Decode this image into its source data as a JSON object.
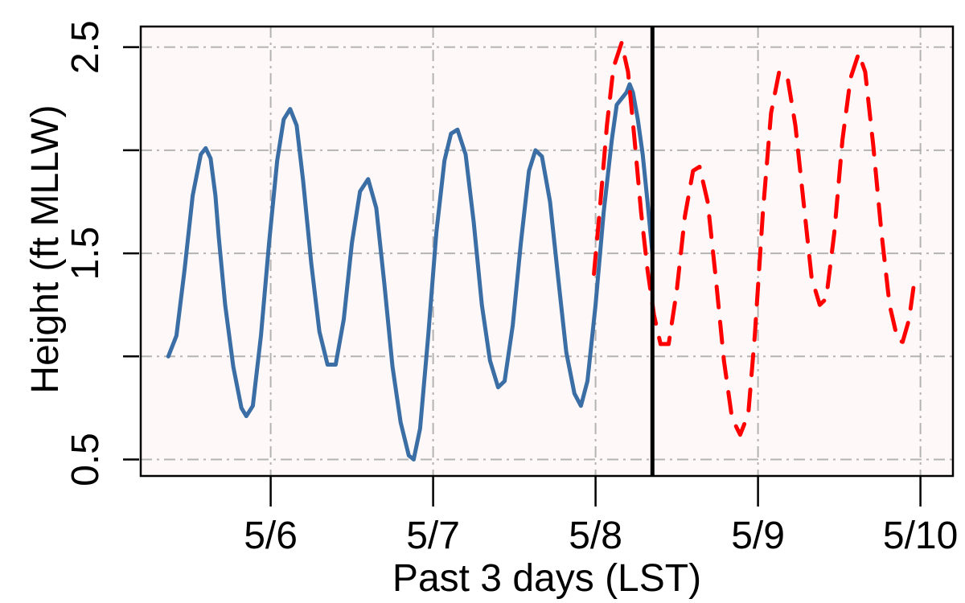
{
  "chart_data": {
    "type": "line",
    "xlabel": "Past 3 days (LST)",
    "ylabel": "Height (ft MLLW)",
    "x_unit": "days",
    "xlim": [
      -0.8,
      4.2
    ],
    "ylim": [
      0.42,
      2.6
    ],
    "x_ticks": [
      0,
      1,
      2,
      3,
      4
    ],
    "x_tick_labels": [
      "5/6",
      "5/7",
      "5/8",
      "5/9",
      "5/10"
    ],
    "y_ticks": [
      0.5,
      1.0,
      1.5,
      2.0,
      2.5
    ],
    "y_tick_labels": [
      "0.5",
      "",
      "1.5",
      "",
      "2.5"
    ],
    "grid": true,
    "background": "#fff8f8",
    "now_marker_x": 2.35,
    "series": [
      {
        "style": "solid",
        "color": "#3a6ea5",
        "points": [
          [
            -0.63,
            1.0
          ],
          [
            -0.58,
            1.1
          ],
          [
            -0.53,
            1.42
          ],
          [
            -0.48,
            1.78
          ],
          [
            -0.43,
            1.98
          ],
          [
            -0.4,
            2.01
          ],
          [
            -0.37,
            1.96
          ],
          [
            -0.34,
            1.78
          ],
          [
            -0.32,
            1.58
          ],
          [
            -0.28,
            1.25
          ],
          [
            -0.23,
            0.95
          ],
          [
            -0.18,
            0.75
          ],
          [
            -0.15,
            0.71
          ],
          [
            -0.11,
            0.76
          ],
          [
            -0.06,
            1.1
          ],
          [
            -0.01,
            1.55
          ],
          [
            0.04,
            1.95
          ],
          [
            0.08,
            2.15
          ],
          [
            0.12,
            2.2
          ],
          [
            0.16,
            2.12
          ],
          [
            0.2,
            1.85
          ],
          [
            0.25,
            1.45
          ],
          [
            0.3,
            1.12
          ],
          [
            0.35,
            0.96
          ],
          [
            0.4,
            0.96
          ],
          [
            0.45,
            1.18
          ],
          [
            0.5,
            1.55
          ],
          [
            0.55,
            1.8
          ],
          [
            0.6,
            1.86
          ],
          [
            0.65,
            1.72
          ],
          [
            0.7,
            1.35
          ],
          [
            0.75,
            0.95
          ],
          [
            0.8,
            0.68
          ],
          [
            0.85,
            0.52
          ],
          [
            0.88,
            0.5
          ],
          [
            0.92,
            0.65
          ],
          [
            0.97,
            1.1
          ],
          [
            1.02,
            1.6
          ],
          [
            1.07,
            1.95
          ],
          [
            1.11,
            2.08
          ],
          [
            1.15,
            2.1
          ],
          [
            1.2,
            1.98
          ],
          [
            1.25,
            1.65
          ],
          [
            1.3,
            1.25
          ],
          [
            1.35,
            0.98
          ],
          [
            1.4,
            0.85
          ],
          [
            1.44,
            0.88
          ],
          [
            1.49,
            1.15
          ],
          [
            1.54,
            1.55
          ],
          [
            1.59,
            1.9
          ],
          [
            1.63,
            2.0
          ],
          [
            1.67,
            1.97
          ],
          [
            1.72,
            1.75
          ],
          [
            1.77,
            1.38
          ],
          [
            1.82,
            1.02
          ],
          [
            1.87,
            0.82
          ],
          [
            1.91,
            0.76
          ],
          [
            1.95,
            0.88
          ],
          [
            2.0,
            1.25
          ],
          [
            2.05,
            1.7
          ],
          [
            2.1,
            2.05
          ],
          [
            2.13,
            2.22
          ],
          [
            2.16,
            2.25
          ],
          [
            2.19,
            2.28
          ],
          [
            2.21,
            2.32
          ],
          [
            2.23,
            2.28
          ],
          [
            2.26,
            2.15
          ],
          [
            2.29,
            1.98
          ],
          [
            2.32,
            1.75
          ],
          [
            2.35,
            1.5
          ]
        ]
      },
      {
        "style": "dashed",
        "color": "#ff0000",
        "points": [
          [
            1.99,
            1.4
          ],
          [
            2.03,
            1.75
          ],
          [
            2.07,
            2.12
          ],
          [
            2.11,
            2.4
          ],
          [
            2.16,
            2.52
          ],
          [
            2.2,
            2.38
          ],
          [
            2.24,
            2.05
          ],
          [
            2.28,
            1.7
          ],
          [
            2.32,
            1.42
          ],
          [
            2.36,
            1.2
          ],
          [
            2.4,
            1.06
          ],
          [
            2.45,
            1.06
          ],
          [
            2.5,
            1.32
          ],
          [
            2.55,
            1.68
          ],
          [
            2.6,
            1.9
          ],
          [
            2.64,
            1.92
          ],
          [
            2.69,
            1.75
          ],
          [
            2.74,
            1.38
          ],
          [
            2.79,
            0.98
          ],
          [
            2.84,
            0.7
          ],
          [
            2.89,
            0.62
          ],
          [
            2.94,
            0.72
          ],
          [
            2.98,
            1.1
          ],
          [
            3.03,
            1.7
          ],
          [
            3.08,
            2.18
          ],
          [
            3.13,
            2.38
          ],
          [
            3.18,
            2.36
          ],
          [
            3.23,
            2.12
          ],
          [
            3.28,
            1.75
          ],
          [
            3.33,
            1.38
          ],
          [
            3.38,
            1.25
          ],
          [
            3.42,
            1.28
          ],
          [
            3.47,
            1.6
          ],
          [
            3.52,
            2.05
          ],
          [
            3.57,
            2.35
          ],
          [
            3.62,
            2.47
          ],
          [
            3.66,
            2.38
          ],
          [
            3.71,
            2.02
          ],
          [
            3.76,
            1.6
          ],
          [
            3.81,
            1.25
          ],
          [
            3.86,
            1.08
          ],
          [
            3.89,
            1.07
          ],
          [
            3.93,
            1.18
          ],
          [
            3.96,
            1.35
          ]
        ]
      }
    ]
  }
}
